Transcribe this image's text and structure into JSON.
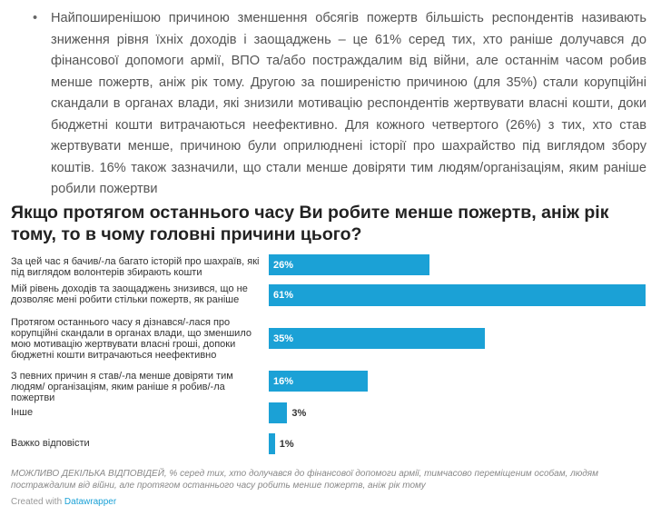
{
  "intro": {
    "bullet": "•",
    "text": "Найпоширенішою причиною зменшення обсягів пожертв більшість респондентів називають зниження рівня їхніх доходів і заощаджень – це 61% серед тих, хто раніше долучався до фінансової допомоги армії, ВПО та/або постраждалим від війни, але останнім часом робив менше пожертв, аніж рік тому. Другою за поширеністю причиною (для 35%) стали корупційні скандали в органах влади, які знизили мотивацію респондентів жертвувати власні кошти, доки бюджетні кошти витрачаються неефективно. Для кожного четвертого (26%) з тих, хто став жертвувати менше, причиною були оприлюднені історії про шахрайство під виглядом збору коштів. 16% також зазначили, що стали менше довіряти тим людям/організаціям, яким раніше робили пожертви"
  },
  "chart_data": {
    "type": "bar",
    "orientation": "horizontal",
    "title": "Якщо протягом останнього часу Ви робите менше пожертв, аніж рік тому, то в чому головні причини цього?",
    "categories": [
      "За цей час я бачив/-ла багато історій про шахраїв, які під виглядом волонтерів збирають кошти",
      "Мій рівень доходів та заощаджень знизився, що не дозволяє мені робити стільки пожертв, як раніше",
      "Протягом останнього часу я дізнався/-лася про корупційні скандали в органах влади, що зменшило мою мотивацію жертвувати власні гроші, допоки бюджетні кошти витрачаються неефективно",
      "З певних причин я став/-ла менше довіряти тим людям/ організаціям, яким раніше я робив/-ла пожертви",
      "Інше",
      "Важко відповісти"
    ],
    "values": [
      26,
      61,
      35,
      16,
      3,
      1
    ],
    "value_labels": [
      "26%",
      "61%",
      "35%",
      "16%",
      "3%",
      "1%"
    ],
    "xlim": [
      0,
      61
    ],
    "bar_color": "#1ba1d6",
    "grid": false
  },
  "notes": "МОЖЛИВО ДЕКІЛЬКА ВІДПОВІДЕЙ, % серед тих, хто долучався до фінансової допомоги армії, тимчасово переміщеним особам, людям постраждалим від війни, але протягом останнього часу робить менше пожертв, аніж рік тому",
  "credit": {
    "prefix": "Created with",
    "tool": "Datawrapper"
  }
}
